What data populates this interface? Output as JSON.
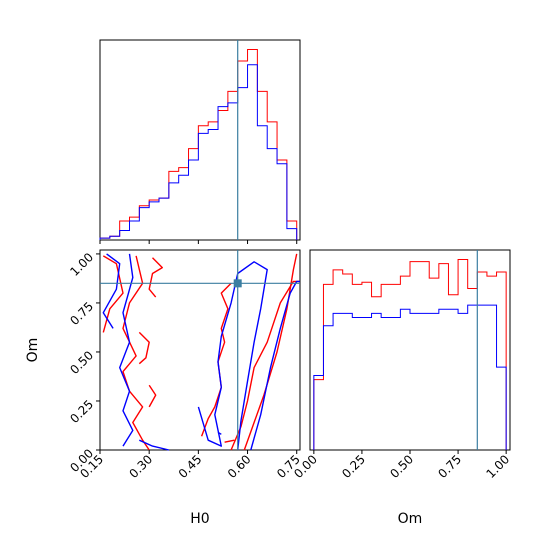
{
  "chart_data": {
    "type": "corner",
    "parameters": [
      "H0",
      "Om"
    ],
    "colors": {
      "series_a": "#ff0000",
      "series_b": "#0000ff",
      "truth": "#3b7ea1"
    },
    "truth": {
      "H0": 0.57,
      "Om": 0.85
    },
    "panels": [
      {
        "type": "histogram",
        "parameter": "H0",
        "xlim": [
          0.15,
          0.76
        ],
        "xlabel": "",
        "bin_edges": [
          0.15,
          0.18,
          0.21,
          0.24,
          0.27,
          0.3,
          0.33,
          0.36,
          0.39,
          0.42,
          0.45,
          0.48,
          0.51,
          0.54,
          0.57,
          0.6,
          0.63,
          0.66,
          0.69,
          0.72,
          0.75
        ],
        "series": [
          {
            "color": "#ff0000",
            "counts": [
              1,
              2,
              10,
              12,
              18,
              21,
              22,
              36,
              38,
              48,
              60,
              62,
              68,
              78,
              94,
              100,
              78,
              62,
              42,
              10
            ]
          },
          {
            "color": "#0000ff",
            "counts": [
              1,
              2,
              5,
              10,
              17,
              20,
              22,
              30,
              34,
              42,
              56,
              58,
              70,
              72,
              80,
              92,
              60,
              48,
              40,
              6
            ]
          }
        ]
      },
      {
        "type": "histogram",
        "parameter": "Om",
        "xlim": [
          -0.02,
          1.02
        ],
        "xlabel": "Om",
        "xticks": [
          "0.00",
          "0.25",
          "0.50",
          "0.75",
          "1.00"
        ],
        "bin_edges": [
          0.0,
          0.05,
          0.1,
          0.15,
          0.2,
          0.25,
          0.3,
          0.35,
          0.4,
          0.45,
          0.5,
          0.55,
          0.6,
          0.65,
          0.7,
          0.75,
          0.8,
          0.85,
          0.9,
          0.95,
          1.0
        ],
        "series": [
          {
            "color": "#ff0000",
            "counts": [
              34,
              80,
              87,
              85,
              80,
              81,
              74,
              80,
              80,
              84,
              91,
              91,
              83,
              90,
              75,
              92,
              78,
              86,
              84,
              86
            ]
          },
          {
            "color": "#0000ff",
            "counts": [
              36,
              60,
              66,
              66,
              64,
              64,
              66,
              64,
              64,
              68,
              66,
              66,
              66,
              68,
              68,
              66,
              70,
              70,
              70,
              40
            ]
          }
        ]
      },
      {
        "type": "contour",
        "x_parameter": "H0",
        "y_parameter": "Om",
        "xlim": [
          0.15,
          0.76
        ],
        "ylim": [
          0.0,
          1.02
        ],
        "xlabel": "H0",
        "ylabel": "Om",
        "xticks": [
          "0.15",
          "0.30",
          "0.45",
          "0.60",
          "0.75"
        ],
        "yticks": [
          "0.00",
          "0.25",
          "0.50",
          "0.75",
          "1.00"
        ],
        "contours": [
          {
            "color": "#ff0000",
            "points": [
              [
                0.16,
                0.99
              ],
              [
                0.2,
                0.95
              ],
              [
                0.22,
                0.8
              ],
              [
                0.18,
                0.72
              ],
              [
                0.16,
                0.6
              ]
            ]
          },
          {
            "color": "#ff0000",
            "points": [
              [
                0.26,
                0.99
              ],
              [
                0.28,
                0.85
              ],
              [
                0.24,
                0.75
              ],
              [
                0.22,
                0.62
              ],
              [
                0.26,
                0.48
              ],
              [
                0.22,
                0.4
              ],
              [
                0.24,
                0.3
              ],
              [
                0.28,
                0.22
              ],
              [
                0.25,
                0.14
              ],
              [
                0.28,
                0.05
              ],
              [
                0.3,
                0.0
              ]
            ]
          },
          {
            "color": "#ff0000",
            "points": [
              [
                0.31,
                0.98
              ],
              [
                0.34,
                0.93
              ],
              [
                0.31,
                0.9
              ],
              [
                0.3,
                0.82
              ],
              [
                0.32,
                0.78
              ]
            ]
          },
          {
            "color": "#ff0000",
            "points": [
              [
                0.27,
                0.6
              ],
              [
                0.3,
                0.55
              ],
              [
                0.29,
                0.47
              ],
              [
                0.27,
                0.44
              ]
            ]
          },
          {
            "color": "#ff0000",
            "points": [
              [
                0.3,
                0.33
              ],
              [
                0.32,
                0.28
              ],
              [
                0.3,
                0.22
              ]
            ]
          },
          {
            "color": "#ff0000",
            "points": [
              [
                0.46,
                0.07
              ],
              [
                0.48,
                0.16
              ],
              [
                0.5,
                0.22
              ],
              [
                0.52,
                0.32
              ],
              [
                0.51,
                0.45
              ],
              [
                0.53,
                0.55
              ],
              [
                0.52,
                0.62
              ],
              [
                0.54,
                0.72
              ],
              [
                0.52,
                0.8
              ],
              [
                0.55,
                0.85
              ]
            ]
          },
          {
            "color": "#ff0000",
            "points": [
              [
                0.55,
                0.0
              ],
              [
                0.58,
                0.12
              ],
              [
                0.6,
                0.25
              ],
              [
                0.62,
                0.42
              ],
              [
                0.66,
                0.55
              ],
              [
                0.7,
                0.75
              ],
              [
                0.74,
                0.86
              ],
              [
                0.76,
                0.86
              ]
            ]
          },
          {
            "color": "#ff0000",
            "points": [
              [
                0.59,
                0.0
              ],
              [
                0.62,
                0.14
              ],
              [
                0.65,
                0.28
              ],
              [
                0.69,
                0.5
              ],
              [
                0.72,
                0.72
              ],
              [
                0.74,
                0.92
              ],
              [
                0.75,
                1.0
              ]
            ]
          },
          {
            "color": "#ff0000",
            "points": [
              [
                0.53,
                0.04
              ],
              [
                0.56,
                0.05
              ]
            ]
          },
          {
            "color": "#0000ff",
            "points": [
              [
                0.17,
                1.0
              ],
              [
                0.21,
                0.95
              ],
              [
                0.2,
                0.82
              ],
              [
                0.16,
                0.7
              ],
              [
                0.19,
                0.62
              ]
            ]
          },
          {
            "color": "#0000ff",
            "points": [
              [
                0.24,
                1.0
              ],
              [
                0.25,
                0.88
              ],
              [
                0.22,
                0.7
              ],
              [
                0.24,
                0.55
              ],
              [
                0.21,
                0.42
              ],
              [
                0.24,
                0.3
              ],
              [
                0.22,
                0.2
              ],
              [
                0.25,
                0.1
              ],
              [
                0.22,
                0.02
              ]
            ]
          },
          {
            "color": "#0000ff",
            "points": [
              [
                0.27,
                0.05
              ],
              [
                0.31,
                0.02
              ],
              [
                0.36,
                0.0
              ]
            ]
          },
          {
            "color": "#0000ff",
            "points": [
              [
                0.45,
                0.22
              ],
              [
                0.48,
                0.05
              ],
              [
                0.52,
                0.02
              ],
              [
                0.5,
                0.18
              ],
              [
                0.52,
                0.32
              ],
              [
                0.51,
                0.45
              ],
              [
                0.52,
                0.58
              ],
              [
                0.55,
                0.75
              ],
              [
                0.57,
                0.9
              ],
              [
                0.62,
                0.96
              ],
              [
                0.66,
                0.92
              ],
              [
                0.64,
                0.72
              ],
              [
                0.62,
                0.55
              ],
              [
                0.6,
                0.35
              ],
              [
                0.58,
                0.15
              ],
              [
                0.57,
                0.0
              ]
            ]
          },
          {
            "color": "#0000ff",
            "points": [
              [
                0.61,
                0.0
              ],
              [
                0.64,
                0.18
              ],
              [
                0.67,
                0.42
              ],
              [
                0.7,
                0.62
              ],
              [
                0.73,
                0.8
              ],
              [
                0.75,
                0.86
              ],
              [
                0.76,
                0.86
              ]
            ]
          },
          {
            "color": "#0000ff",
            "points": [
              [
                0.51,
                0.09
              ],
              [
                0.52,
                0.08
              ]
            ]
          }
        ]
      }
    ]
  }
}
